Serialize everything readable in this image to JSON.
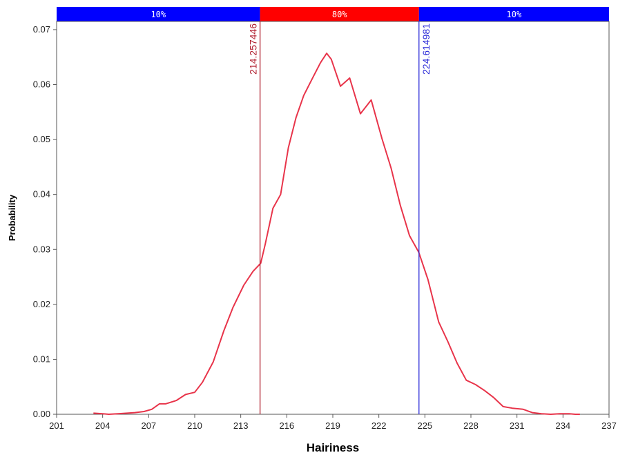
{
  "chart_data": {
    "type": "line",
    "xlabel": "Hairiness",
    "ylabel": "Probability",
    "xlim": [
      201,
      237
    ],
    "ylim": [
      0,
      0.0715
    ],
    "x_ticks": [
      "201",
      "204",
      "207",
      "210",
      "213",
      "216",
      "219",
      "222",
      "225",
      "228",
      "231",
      "234",
      "237"
    ],
    "y_ticks": [
      "0.00",
      "0.01",
      "0.02",
      "0.03",
      "0.04",
      "0.05",
      "0.06",
      "0.07"
    ],
    "grid": false,
    "series": [
      {
        "color": "#e8344a",
        "x": [
          203.4,
          204.0,
          204.4,
          205.0,
          205.6,
          206.1,
          206.7,
          207.2,
          207.7,
          208.1,
          208.8,
          209.4,
          210.0,
          210.5,
          211.2,
          211.9,
          212.5,
          213.2,
          213.8,
          214.3,
          214.6,
          215.1,
          215.6,
          216.1,
          216.6,
          217.1,
          217.7,
          218.2,
          218.6,
          218.9,
          219.5,
          220.1,
          220.8,
          221.5,
          222.2,
          222.8,
          223.4,
          224.0,
          224.6,
          225.2,
          225.9,
          226.5,
          227.1,
          227.7,
          228.3,
          228.9,
          229.5,
          230.1,
          230.7,
          231.4,
          232.0,
          232.6,
          233.2,
          233.8,
          234.4,
          234.8,
          235.1
        ],
        "y": [
          0.0002,
          0.0001,
          0.0,
          0.0001,
          0.0002,
          0.0003,
          0.0005,
          0.0009,
          0.0019,
          0.0019,
          0.0025,
          0.0036,
          0.004,
          0.0058,
          0.0095,
          0.0152,
          0.0195,
          0.0235,
          0.026,
          0.0275,
          0.031,
          0.0375,
          0.04,
          0.0485,
          0.054,
          0.058,
          0.0613,
          0.064,
          0.0657,
          0.0646,
          0.0597,
          0.0612,
          0.0547,
          0.0572,
          0.0502,
          0.0448,
          0.038,
          0.0325,
          0.0295,
          0.0245,
          0.0168,
          0.0132,
          0.0093,
          0.0062,
          0.0054,
          0.0043,
          0.003,
          0.0014,
          0.0011,
          0.0009,
          0.0003,
          0.0001,
          0.0,
          0.0001,
          0.0001,
          0.0,
          0.0
        ]
      }
    ],
    "markers": [
      {
        "label": "214.257446",
        "x": 214.257446,
        "color": "#b01e2e"
      },
      {
        "label": "224.614981",
        "x": 224.614981,
        "color": "#2a2ad8"
      }
    ],
    "bands": [
      {
        "label": "10%",
        "from": 201,
        "to": 214.257446,
        "color": "#0000ff"
      },
      {
        "label": "80%",
        "from": 214.257446,
        "to": 224.614981,
        "color": "#ff0000"
      },
      {
        "label": "10%",
        "from": 224.614981,
        "to": 237,
        "color": "#0000ff"
      }
    ]
  }
}
